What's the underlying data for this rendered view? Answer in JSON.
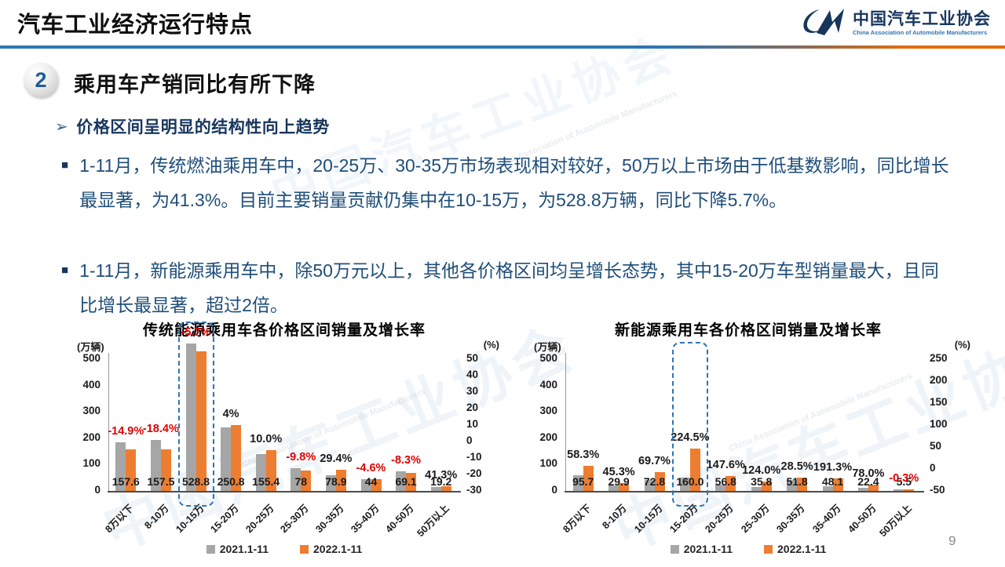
{
  "header": {
    "title": "汽车工业经济运行特点",
    "logo": {
      "name_cn": "中国汽车工业协会",
      "name_en": "China Association of Automobile Manufacturers"
    }
  },
  "section": {
    "number": "2",
    "title": "乘用车产销同比有所下降"
  },
  "subheading": "价格区间呈明显的结构性向上趋势",
  "paragraphs": {
    "p1": "1-11月，传统燃油乘用车中，20-25万、30-35万市场表现相对较好，50万以上市场由于低基数影响，同比增长最显著，为41.3%。目前主要销量贡献仍集中在10-15万，为528.8万辆，同比下降5.7%。",
    "p2": "1-11月，新能源乘用车中，除50万元以上，其他各价格区间均呈增长态势，其中15-20万车型销量最大，且同比增长最显著，超过2倍。"
  },
  "watermarks": {
    "cn": "中国汽车工业协会",
    "en": "China Association of Automobile Manufacturers"
  },
  "page_number": "9",
  "colors": {
    "bar_2021": "#A6A6A6",
    "bar_2022": "#ED7D31",
    "negative": "#E00000",
    "positive_label": "#1a1a1a",
    "accent_blue": "#2E75B6",
    "text_blue": "#1F4E79"
  },
  "chart_data": [
    {
      "type": "bar",
      "title": "传统能源乘用车各价格区间销量及增长率",
      "unit_left": "(万辆)",
      "unit_right": "(%)",
      "categories": [
        "8万以下",
        "8-10万",
        "10-15万",
        "15-20万",
        "20-25万",
        "25-30万",
        "30-35万",
        "35-40万",
        "40-50万",
        "50万以上"
      ],
      "series": [
        {
          "name": "2021.1-11",
          "color": "#A6A6A6",
          "estimated_from_growth": true,
          "values": [
            185.2,
            193.0,
            560.8,
            241.2,
            141.3,
            86.5,
            61.0,
            46.1,
            75.4,
            13.6
          ]
        },
        {
          "name": "2022.1-11",
          "color": "#ED7D31",
          "values": [
            157.6,
            157.5,
            528.8,
            250.8,
            155.4,
            78,
            78.9,
            44,
            69.1,
            19.2
          ]
        }
      ],
      "value_labels": [
        "157.6",
        "157.5",
        "528.8",
        "250.8",
        "155.4",
        "78",
        "78.9",
        "44",
        "69.1",
        "19.2"
      ],
      "growth_labels": [
        "-14.9%",
        "-18.4%",
        "-5.7%",
        "4%",
        "10.0%",
        "-9.8%",
        "29.4%",
        "-4.6%",
        "-8.3%",
        "41.3%"
      ],
      "y_left_ticks": [
        "500",
        "400",
        "300",
        "200",
        "100",
        "0"
      ],
      "y_right_ticks": [
        "50",
        "40",
        "30",
        "20",
        "10",
        "0",
        "-10",
        "-20",
        "-30"
      ],
      "ylim_left": [
        0,
        500
      ],
      "ylim_right": [
        -30,
        50
      ],
      "highlight_category_index": 2,
      "legend": [
        "2021.1-11",
        "2022.1-11"
      ]
    },
    {
      "type": "bar",
      "title": "新能源乘用车各价格区间销量及增长率",
      "unit_left": "(万辆)",
      "unit_right": "(%)",
      "categories": [
        "8万以下",
        "8-10万",
        "10-15万",
        "15-20万",
        "20-25万",
        "25-30万",
        "30-35万",
        "35-40万",
        "40-50万",
        "50万以上"
      ],
      "series": [
        {
          "name": "2021.1-11",
          "color": "#A6A6A6",
          "estimated_from_growth": true,
          "values": [
            60.5,
            20.6,
            42.9,
            49.3,
            22.9,
            16.0,
            40.3,
            16.5,
            12.6,
            5.5
          ]
        },
        {
          "name": "2022.1-11",
          "color": "#ED7D31",
          "values": [
            95.7,
            29.9,
            72.8,
            160.0,
            56.8,
            35.8,
            51.8,
            48.1,
            22.4,
            5.5
          ]
        }
      ],
      "value_labels": [
        "95.7",
        "29.9",
        "72.8",
        "160.0",
        "56.8",
        "35.8",
        "51.8",
        "48.1",
        "22.4",
        "5.5"
      ],
      "growth_labels": [
        "58.3%",
        "45.3%",
        "69.7%",
        "224.5%",
        "147.6%",
        "124.0%",
        "28.5%",
        "191.3%",
        "78.0%",
        "-0.3%"
      ],
      "y_left_ticks": [
        "500",
        "400",
        "300",
        "200",
        "100",
        "0"
      ],
      "y_right_ticks": [
        "250",
        "200",
        "150",
        "100",
        "50",
        "0",
        "-50"
      ],
      "ylim_left": [
        0,
        500
      ],
      "ylim_right": [
        -50,
        250
      ],
      "highlight_category_index": 3,
      "legend": [
        "2021.1-11",
        "2022.1-11"
      ]
    }
  ]
}
